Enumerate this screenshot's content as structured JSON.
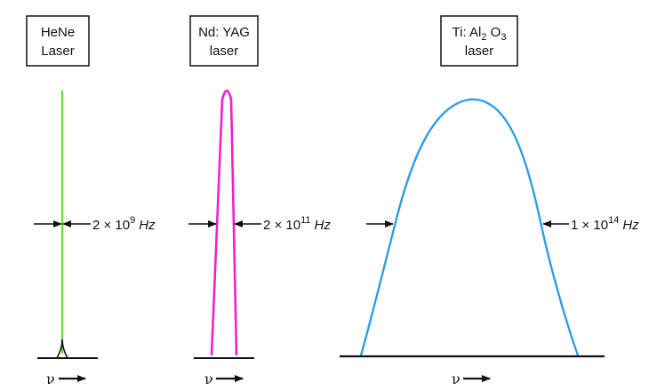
{
  "lasers": [
    {
      "label_line1": "HeNe",
      "label_line2": "Laser",
      "bandwidth": {
        "mantissa": "2 × 10",
        "exponent": "9",
        "unit": "Hz"
      },
      "axis_label": "ν",
      "color": "#66dd33"
    },
    {
      "label_line1": "Nd: YAG",
      "label_line2": "laser",
      "bandwidth": {
        "mantissa": "2 × 10",
        "exponent": "11",
        "unit": "Hz"
      },
      "axis_label": "ν",
      "color": "#ee22cc"
    },
    {
      "label_line1": {
        "a": "Ti: Al",
        "b": "2",
        "c": " O",
        "d": "3"
      },
      "label_line2": "laser",
      "bandwidth": {
        "mantissa": "1 × 10",
        "exponent": "14",
        "unit": "Hz"
      },
      "axis_label": "ν",
      "color": "#2f9ee8"
    }
  ]
}
